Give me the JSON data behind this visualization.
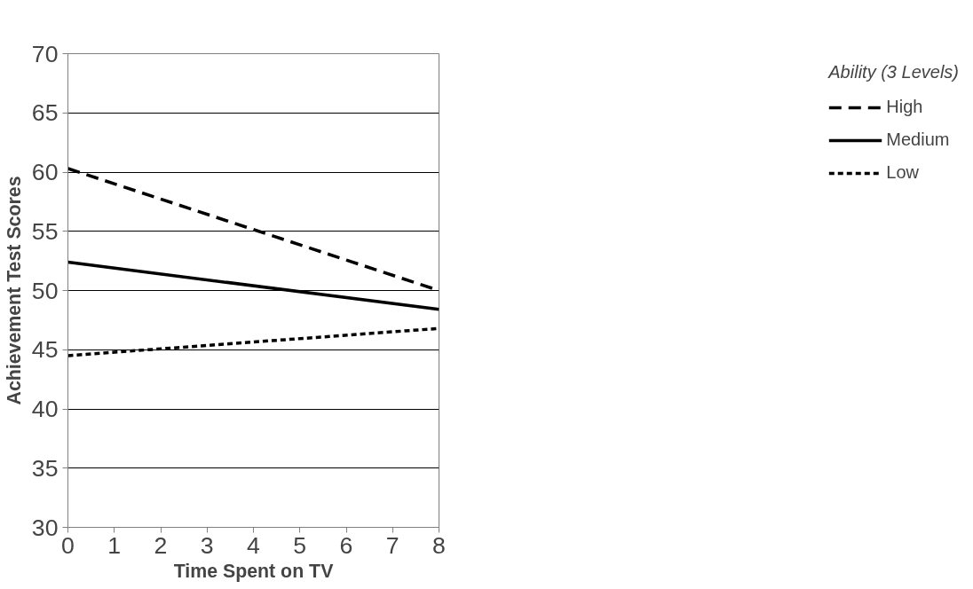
{
  "chart_data": {
    "type": "line",
    "xlabel": "Time Spent on TV",
    "ylabel": "Achievement Test Scores",
    "legend_title": "Ability (3 Levels)",
    "x": [
      0,
      8
    ],
    "series": [
      {
        "name": "High",
        "color": "#000000",
        "values": [
          60.3,
          50.0
        ],
        "line_style": "dashed"
      },
      {
        "name": "Medium",
        "color": "#000000",
        "values": [
          52.4,
          48.4
        ],
        "line_style": "solid"
      },
      {
        "name": "Low",
        "color": "#000000",
        "values": [
          44.5,
          46.8
        ],
        "line_style": "dotted"
      }
    ],
    "xlim": [
      0,
      8
    ],
    "xticks": [
      0,
      1,
      2,
      3,
      4,
      5,
      6,
      7,
      8
    ],
    "ylim": [
      30,
      70
    ],
    "yticks": [
      30,
      35,
      40,
      45,
      50,
      55,
      60,
      65,
      70
    ],
    "grid": "y",
    "legend": "right",
    "marker": "none"
  }
}
